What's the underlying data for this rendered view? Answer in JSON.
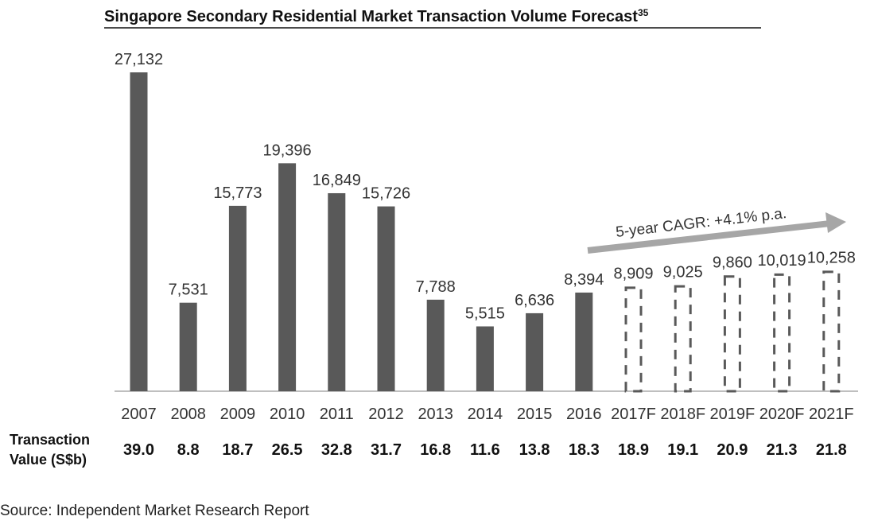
{
  "chart_data": {
    "type": "bar",
    "title": "Singapore Secondary Residential Market Transaction Volume Forecast",
    "title_footnote": "35",
    "categories": [
      "2007",
      "2008",
      "2009",
      "2010",
      "2011",
      "2012",
      "2013",
      "2014",
      "2015",
      "2016",
      "2017F",
      "2018F",
      "2019F",
      "2020F",
      "2021F"
    ],
    "values": [
      27132,
      7531,
      15773,
      19396,
      16849,
      15726,
      7788,
      5515,
      6636,
      8394,
      8909,
      9025,
      9860,
      10019,
      10258
    ],
    "value_labels": [
      "27,132",
      "7,531",
      "15,773",
      "19,396",
      "16,849",
      "15,726",
      "7,788",
      "5,515",
      "6,636",
      "8,394",
      "8,909",
      "9,025",
      "9,860",
      "10,019",
      "10,258"
    ],
    "forecast": [
      false,
      false,
      false,
      false,
      false,
      false,
      false,
      false,
      false,
      false,
      true,
      true,
      true,
      true,
      true
    ],
    "ylim": [
      0,
      27132
    ],
    "grid": false,
    "annotation": "5-year CAGR: +4.1% p.a.",
    "transaction_value": {
      "label_line1": "Transaction",
      "label_line2": "Value (S$b)",
      "values": [
        "39.0",
        "8.8",
        "18.7",
        "26.5",
        "32.8",
        "31.7",
        "16.8",
        "11.6",
        "13.8",
        "18.3",
        "18.9",
        "19.1",
        "20.9",
        "21.3",
        "21.8"
      ]
    },
    "colors": {
      "bar": "#595959",
      "forecast_outline": "#595959",
      "arrow": "#a6a6a6",
      "axis": "#bfbfbf"
    }
  },
  "source": "Source: Independent Market Research Report"
}
